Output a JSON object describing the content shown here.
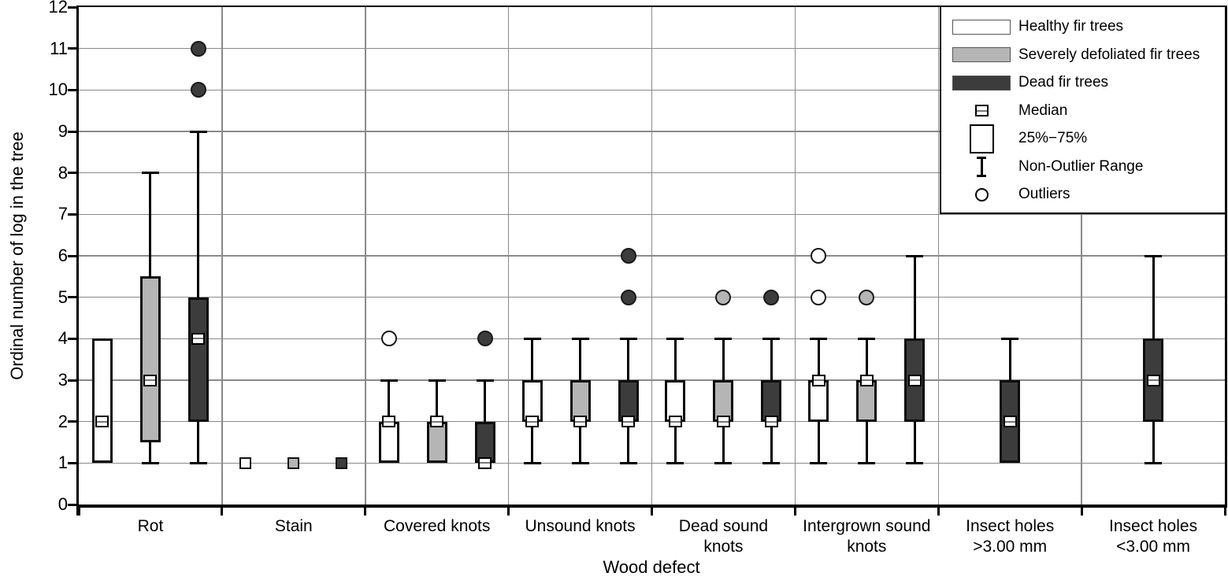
{
  "chart_data": {
    "type": "boxplot",
    "title": "",
    "xlabel": "Wood defect",
    "ylabel": "Ordinal number of log in the tree",
    "ylim": [
      0,
      12
    ],
    "yticks": [
      0,
      1,
      2,
      3,
      4,
      5,
      6,
      7,
      8,
      9,
      10,
      11,
      12
    ],
    "grid": "on",
    "legend_position": "top-right-inside",
    "categories": [
      "Rot",
      "Stain",
      "Covered knots",
      "Unsound knots",
      "Dead sound\nknots",
      "Intergrown sound\nknots",
      "Insect holes\n>3.00 mm",
      "Insect holes\n<3.00 mm"
    ],
    "colors": {
      "healthy": "#ffffff",
      "defoliated": "#b5b5b5",
      "dead": "#3c3c3c",
      "gridline": "#8a8a8a",
      "axis": "#000000"
    },
    "series": [
      {
        "name": "Healthy fir trees",
        "fill": "#ffffff",
        "boxes": [
          {
            "q1": 1,
            "median": 2,
            "q3": 4,
            "whisker_low": 1,
            "whisker_high": 4,
            "outliers": []
          },
          {
            "q1": 1,
            "median": 1,
            "q3": 1,
            "whisker_low": 1,
            "whisker_high": 1,
            "outliers": []
          },
          {
            "q1": 1,
            "median": 2,
            "q3": 2,
            "whisker_low": 1,
            "whisker_high": 3,
            "outliers": [
              4
            ]
          },
          {
            "q1": 2,
            "median": 2,
            "q3": 3,
            "whisker_low": 1,
            "whisker_high": 4,
            "outliers": []
          },
          {
            "q1": 2,
            "median": 2,
            "q3": 3,
            "whisker_low": 1,
            "whisker_high": 4,
            "outliers": []
          },
          {
            "q1": 2,
            "median": 3,
            "q3": 3,
            "whisker_low": 1,
            "whisker_high": 4,
            "outliers": [
              5,
              6
            ]
          },
          null,
          null
        ]
      },
      {
        "name": "Severely defoliated fir trees",
        "fill": "#b5b5b5",
        "boxes": [
          {
            "q1": 1.5,
            "median": 3,
            "q3": 5.5,
            "whisker_low": 1,
            "whisker_high": 8,
            "outliers": []
          },
          {
            "q1": 1,
            "median": 1,
            "q3": 1,
            "whisker_low": 1,
            "whisker_high": 1,
            "outliers": []
          },
          {
            "q1": 1,
            "median": 2,
            "q3": 2,
            "whisker_low": 1,
            "whisker_high": 3,
            "outliers": []
          },
          {
            "q1": 2,
            "median": 2,
            "q3": 3,
            "whisker_low": 1,
            "whisker_high": 4,
            "outliers": []
          },
          {
            "q1": 2,
            "median": 2,
            "q3": 3,
            "whisker_low": 1,
            "whisker_high": 4,
            "outliers": [
              5
            ]
          },
          {
            "q1": 2,
            "median": 3,
            "q3": 3,
            "whisker_low": 1,
            "whisker_high": 4,
            "outliers": [
              5
            ]
          },
          null,
          null
        ]
      },
      {
        "name": "Dead fir trees",
        "fill": "#3c3c3c",
        "boxes": [
          {
            "q1": 2,
            "median": 4,
            "q3": 5,
            "whisker_low": 1,
            "whisker_high": 9,
            "outliers": [
              10,
              11
            ]
          },
          {
            "q1": 1,
            "median": 1,
            "q3": 1,
            "whisker_low": 1,
            "whisker_high": 1,
            "outliers": []
          },
          {
            "q1": 1,
            "median": 1,
            "q3": 2,
            "whisker_low": 1,
            "whisker_high": 3,
            "outliers": [
              4
            ]
          },
          {
            "q1": 2,
            "median": 2,
            "q3": 3,
            "whisker_low": 1,
            "whisker_high": 4,
            "outliers": [
              5,
              6
            ]
          },
          {
            "q1": 2,
            "median": 2,
            "q3": 3,
            "whisker_low": 1,
            "whisker_high": 4,
            "outliers": [
              5
            ]
          },
          {
            "q1": 2,
            "median": 3,
            "q3": 4,
            "whisker_low": 1,
            "whisker_high": 6,
            "outliers": []
          },
          {
            "q1": 1,
            "median": 2,
            "q3": 3,
            "whisker_low": 1,
            "whisker_high": 4,
            "outliers": []
          },
          {
            "q1": 2,
            "median": 3,
            "q3": 4,
            "whisker_low": 1,
            "whisker_high": 6,
            "outliers": []
          }
        ]
      }
    ]
  },
  "legend": {
    "items": [
      {
        "type": "swatch",
        "fill": "#ffffff",
        "label": "Healthy fir trees"
      },
      {
        "type": "swatch",
        "fill": "#b5b5b5",
        "label": "Severely defoliated fir trees"
      },
      {
        "type": "swatch",
        "fill": "#3c3c3c",
        "label": "Dead fir trees"
      },
      {
        "type": "median",
        "label": "Median"
      },
      {
        "type": "box",
        "label": "25%−75%"
      },
      {
        "type": "whisker",
        "label": "Non-Outlier Range"
      },
      {
        "type": "outlier",
        "label": "Outliers"
      }
    ]
  }
}
